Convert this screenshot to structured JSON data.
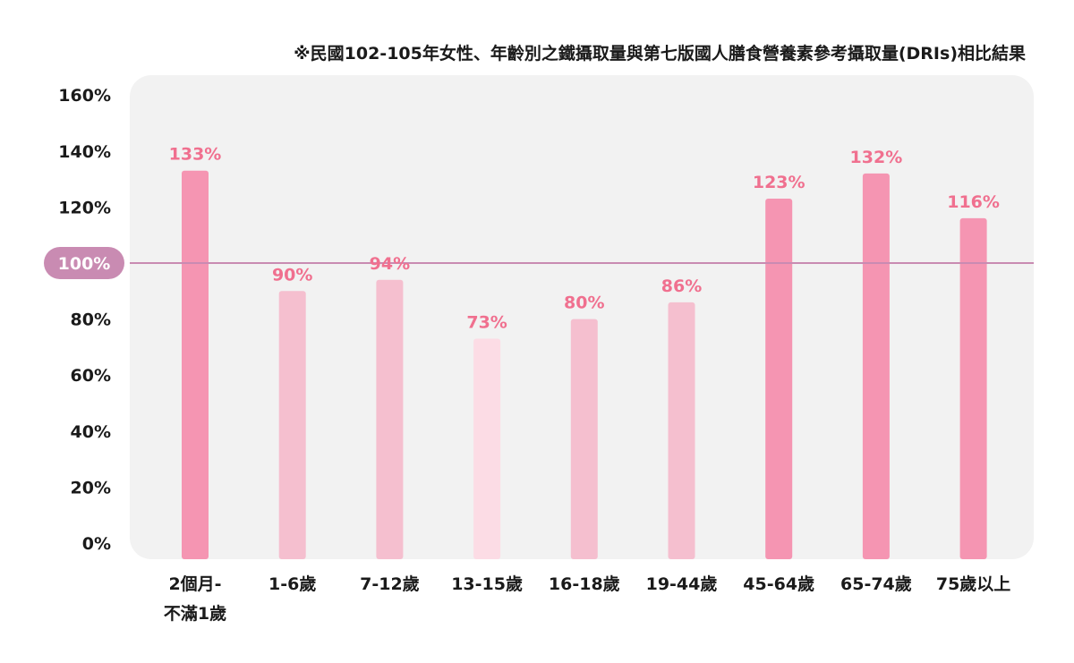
{
  "chart_data": {
    "type": "bar",
    "title": "※民國102-105年女性、年齡別之鐵攝取量與第七版國人膳食營養素參考攝取量(DRIs)相比結果",
    "xlabel": "",
    "ylabel": "",
    "ylim": [
      0,
      160
    ],
    "yticks": [
      "0%",
      "20%",
      "40%",
      "60%",
      "80%",
      "100%",
      "120%",
      "140%",
      "160%"
    ],
    "reference_line": {
      "value": 100,
      "label": "100%",
      "color": "#c98bb2"
    },
    "categories": [
      [
        "2個月-",
        "不滿1歲"
      ],
      [
        "1-6歲"
      ],
      [
        "7-12歲"
      ],
      [
        "13-15歲"
      ],
      [
        "16-18歲"
      ],
      [
        "19-44歲"
      ],
      [
        "45-64歲"
      ],
      [
        "65-74歲"
      ],
      [
        "75歲以上"
      ]
    ],
    "values": [
      133,
      90,
      94,
      73,
      80,
      86,
      123,
      132,
      116
    ],
    "value_labels": [
      "133%",
      "90%",
      "94%",
      "73%",
      "80%",
      "86%",
      "123%",
      "132%",
      "116%"
    ],
    "bar_colors": [
      "#f595b2",
      "#f5bfcf",
      "#f5bfcf",
      "#fcdce5",
      "#f5bfcf",
      "#f5bfcf",
      "#f595b2",
      "#f595b2",
      "#f595b2"
    ],
    "label_color": "#f0708f",
    "background_color": "#f2f2f2",
    "grid": false,
    "legend": "none"
  }
}
